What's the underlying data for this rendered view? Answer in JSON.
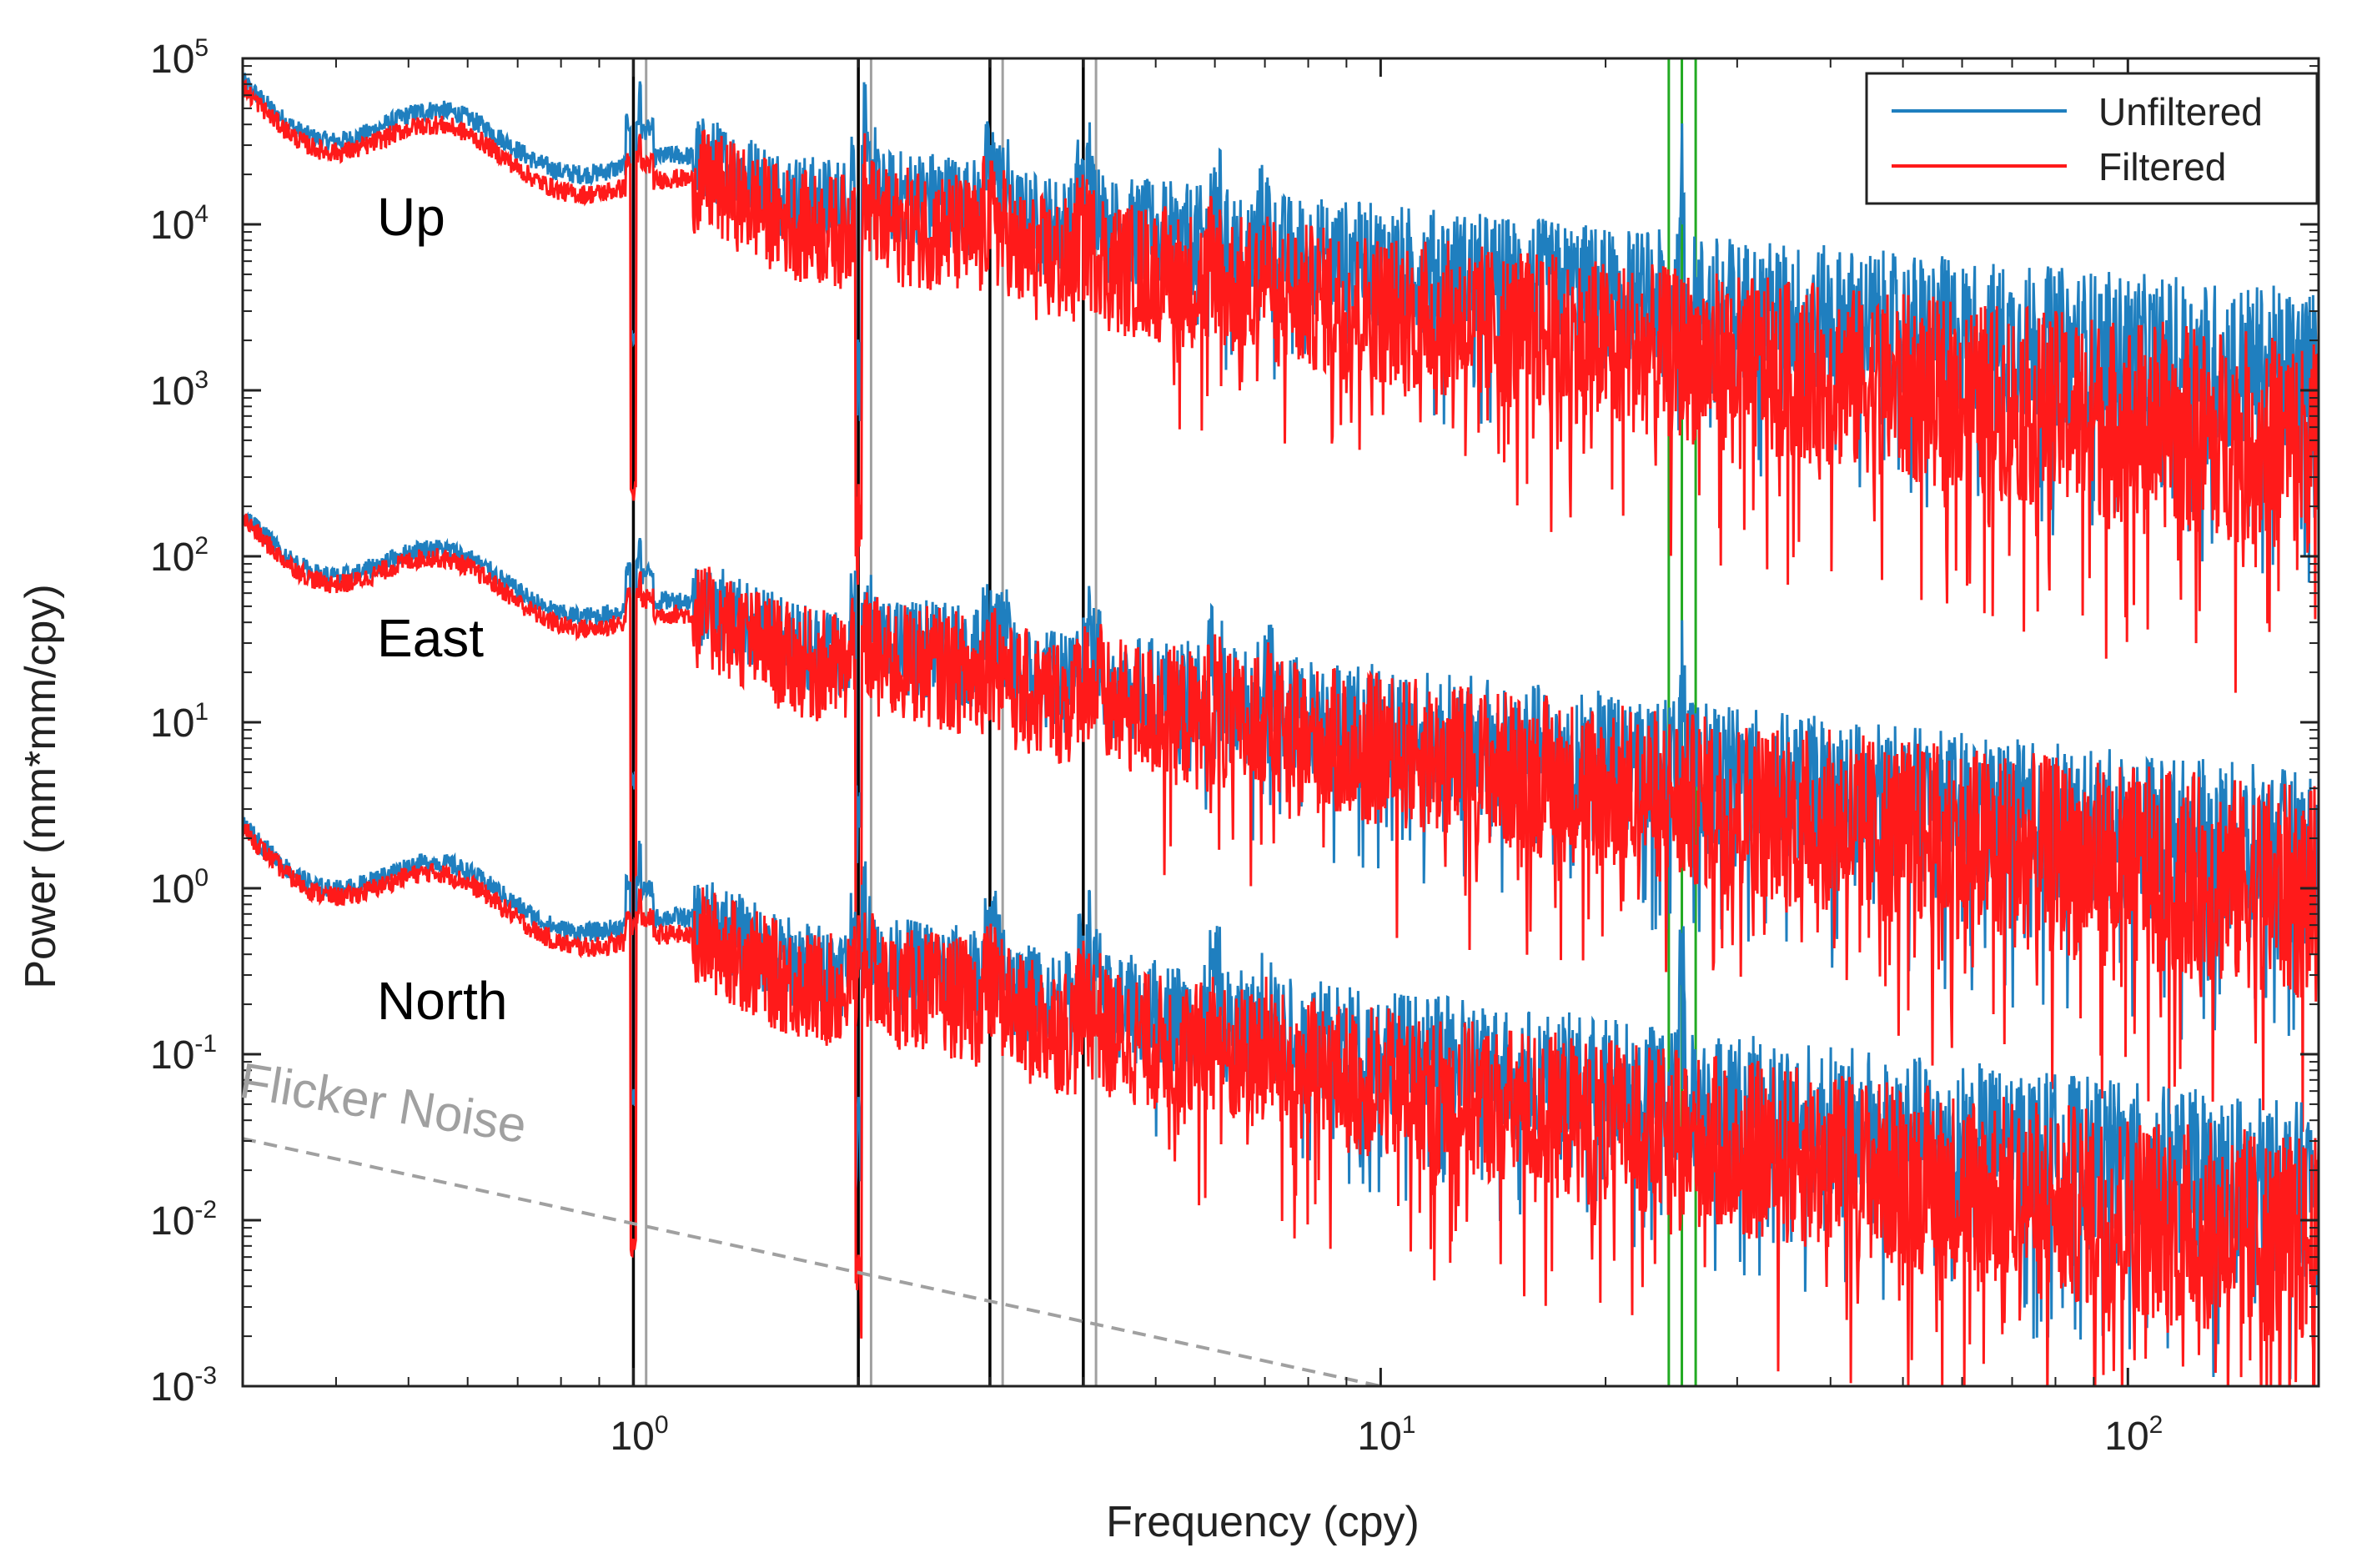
{
  "chart_data": {
    "type": "line",
    "xscale": "log",
    "yscale": "log",
    "xlabel": "Frequency (cpy)",
    "ylabel": "Power (mm*mm/cpy)",
    "xlim": [
      0.3,
      180
    ],
    "ylim": [
      0.001,
      100000
    ],
    "x_ticks": [
      {
        "value": 1,
        "base": "10",
        "exp": "0"
      },
      {
        "value": 10,
        "base": "10",
        "exp": "1"
      },
      {
        "value": 100,
        "base": "10",
        "exp": "2"
      }
    ],
    "y_ticks": [
      {
        "value": 100000,
        "base": "10",
        "exp": "5"
      },
      {
        "value": 10000,
        "base": "10",
        "exp": "4"
      },
      {
        "value": 1000,
        "base": "10",
        "exp": "3"
      },
      {
        "value": 100,
        "base": "10",
        "exp": "2"
      },
      {
        "value": 10,
        "base": "10",
        "exp": "1"
      },
      {
        "value": 1,
        "base": "10",
        "exp": "0"
      },
      {
        "value": 0.1,
        "base": "10",
        "exp": "-1"
      },
      {
        "value": 0.01,
        "base": "10",
        "exp": "-2"
      },
      {
        "value": 0.001,
        "base": "10",
        "exp": "-3"
      }
    ],
    "legend": {
      "position": "top-right",
      "entries": [
        {
          "name": "Unfiltered",
          "color": "#1f7fbf"
        },
        {
          "name": "Filtered",
          "color": "#ff1a1a"
        }
      ]
    },
    "components": [
      {
        "label": "Up",
        "unfiltered_level": [
          60000,
          1200
        ],
        "filtered_level": [
          55000,
          450
        ]
      },
      {
        "label": "East",
        "unfiltered_level": [
          150,
          1.5
        ],
        "filtered_level": [
          140,
          0.9
        ]
      },
      {
        "label": "North",
        "unfiltered_level": [
          2.0,
          0.015
        ],
        "filtered_level": [
          1.9,
          0.007
        ]
      }
    ],
    "flicker_noise": {
      "label": "Flicker Noise",
      "color": "#a0a0a0",
      "points": [
        [
          0.3,
          0.031
        ],
        [
          10,
          0.001
        ]
      ]
    },
    "reference_lines": {
      "black": {
        "color": "#000000",
        "x": [
          1.0,
          2.0,
          3.0,
          4.0
        ]
      },
      "gray": {
        "color": "#a0a0a0",
        "x": [
          1.04,
          2.08,
          3.12,
          4.16
        ]
      },
      "green": {
        "color": "#22aa22",
        "x": [
          24.3,
          25.3,
          26.4
        ]
      }
    }
  }
}
